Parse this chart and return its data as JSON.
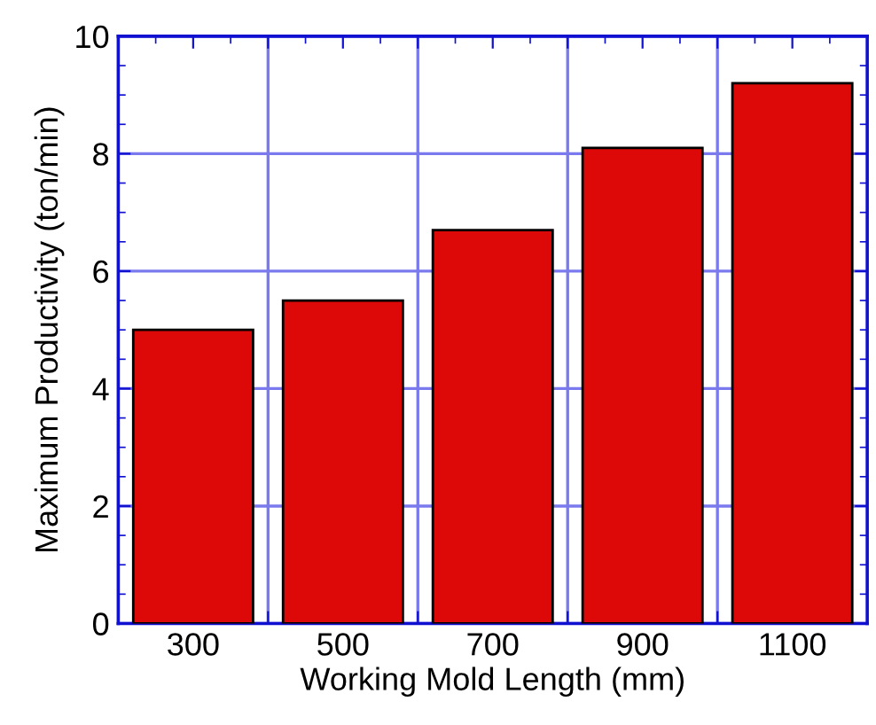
{
  "chart_data": {
    "type": "bar",
    "xlabel": "Working Mold Length (mm)",
    "ylabel": "Maximum Productivity (ton/min)",
    "x": [
      300,
      500,
      700,
      900,
      1100
    ],
    "values": [
      5.0,
      5.5,
      6.7,
      8.1,
      9.2
    ],
    "color": "#dd0808",
    "xlim": [
      200,
      1200
    ],
    "xticks": [
      300,
      {
        "value": 400,
        "label": null
      },
      500,
      {
        "value": 600,
        "label": null
      },
      700,
      {
        "value": 800,
        "label": null
      },
      900,
      {
        "value": 1000,
        "label": null
      },
      1100
    ],
    "ylim": [
      0,
      10
    ],
    "yticks": [
      0,
      2,
      4,
      6,
      8,
      10
    ],
    "grid": true
  }
}
